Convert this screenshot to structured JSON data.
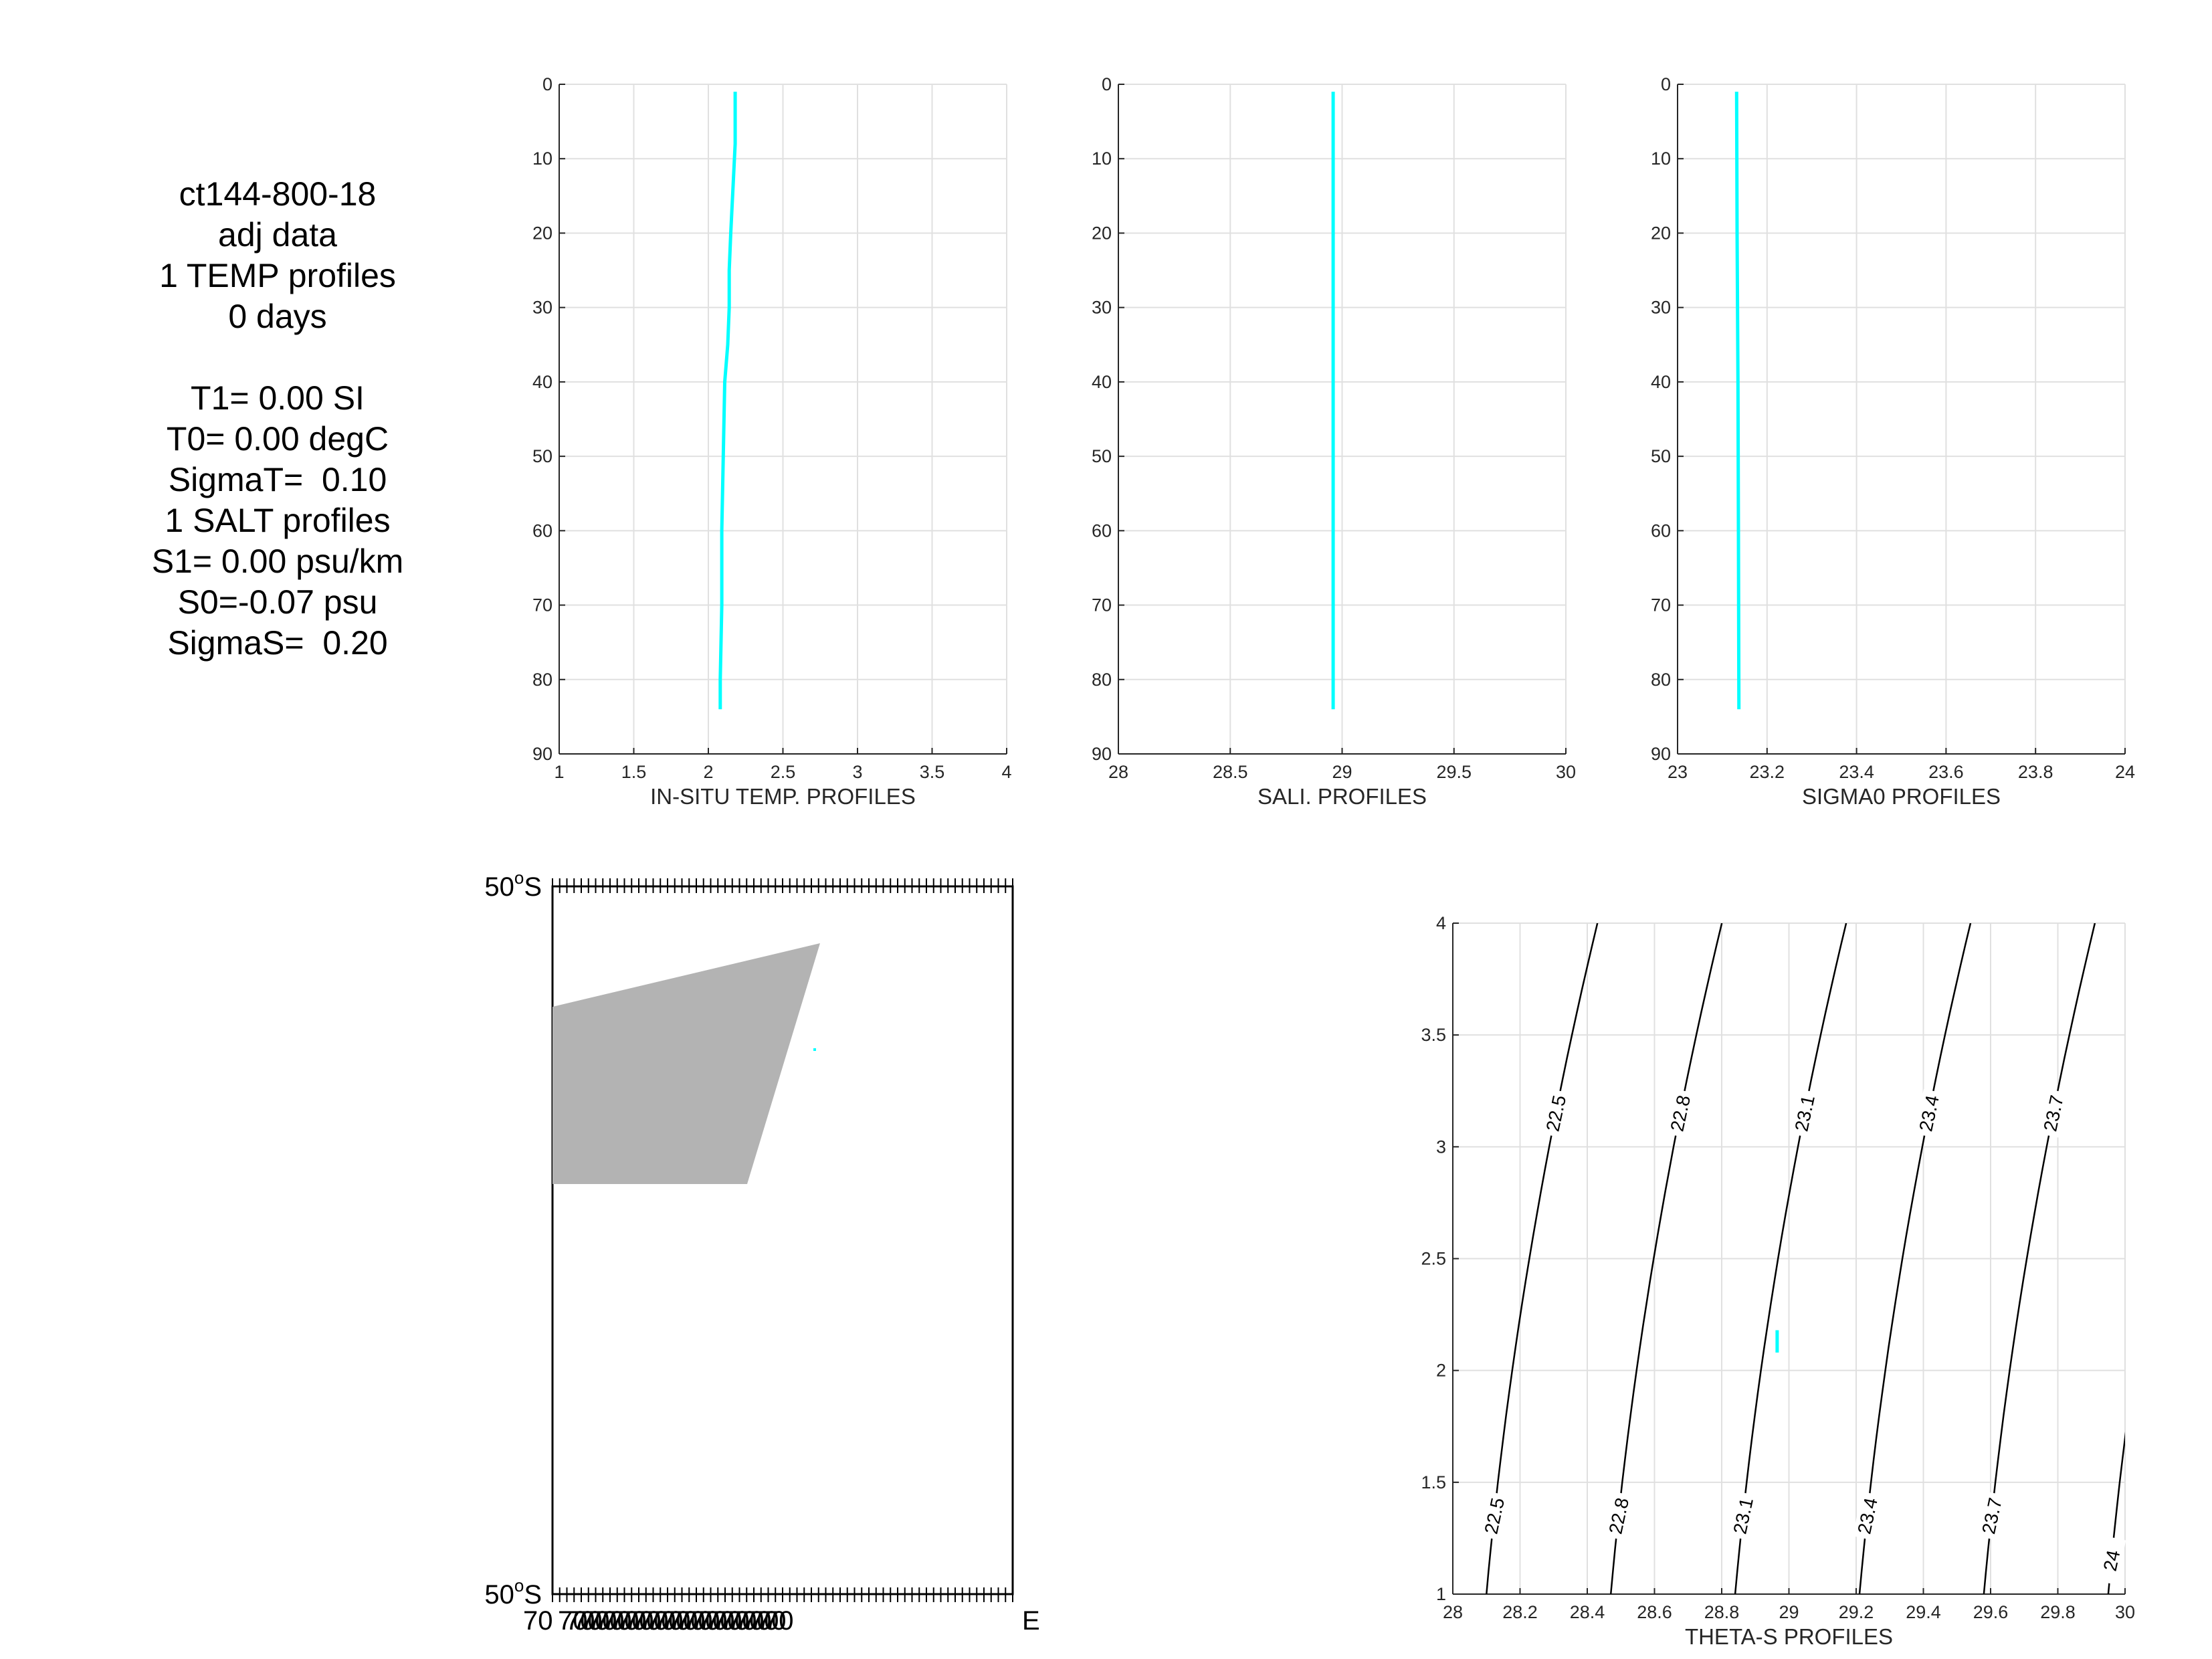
{
  "info": {
    "lines": [
      "ct144-800-18",
      "adj data",
      "1 TEMP profiles",
      "0 days",
      "",
      "T1= 0.00 SI",
      "T0= 0.00 degC",
      "SigmaT=  0.10",
      "1 SALT profiles",
      "S1= 0.00 psu/km",
      "S0=-0.07 psu",
      "SigmaS=  0.20"
    ]
  },
  "colors": {
    "profile": "#00ffff",
    "land": "#b3b3b3",
    "grid": "#e0e0e0",
    "axis": "#262626"
  },
  "chart_data": [
    {
      "type": "line",
      "xlabel": "IN-SITU TEMP. PROFILES",
      "xlim": [
        1,
        4
      ],
      "ylim": [
        0,
        90
      ],
      "y_reversed": true,
      "xticks": [
        1,
        1.5,
        2,
        2.5,
        3,
        3.5,
        4
      ],
      "xtick_labels": [
        "1",
        "1.5",
        "2",
        "2.5",
        "3",
        "3.5",
        "4"
      ],
      "yticks": [
        0,
        10,
        20,
        30,
        40,
        50,
        60,
        70,
        80,
        90
      ],
      "grid": true,
      "series": [
        {
          "x": [
            2.18,
            2.18,
            2.17,
            2.15,
            2.14,
            2.14,
            2.13,
            2.11,
            2.1,
            2.09,
            2.09,
            2.08,
            2.08
          ],
          "y": [
            1,
            8,
            12,
            20,
            25,
            30,
            35,
            40,
            50,
            60,
            70,
            80,
            84
          ]
        }
      ]
    },
    {
      "type": "line",
      "xlabel": "SALI. PROFILES",
      "xlim": [
        28,
        30
      ],
      "ylim": [
        0,
        90
      ],
      "y_reversed": true,
      "xticks": [
        28,
        28.5,
        29,
        29.5,
        30
      ],
      "xtick_labels": [
        "28",
        "28.5",
        "29",
        "29.5",
        "30"
      ],
      "yticks": [
        0,
        10,
        20,
        30,
        40,
        50,
        60,
        70,
        80,
        90
      ],
      "grid": true,
      "series": [
        {
          "x": [
            28.96,
            28.96,
            28.96,
            28.96
          ],
          "y": [
            1,
            30,
            60,
            84
          ]
        }
      ]
    },
    {
      "type": "line",
      "xlabel": "SIGMA0 PROFILES",
      "xlim": [
        23,
        24
      ],
      "ylim": [
        0,
        90
      ],
      "y_reversed": true,
      "xticks": [
        23,
        23.2,
        23.4,
        23.6,
        23.8,
        24
      ],
      "xtick_labels": [
        "23",
        "23.2",
        "23.4",
        "23.6",
        "23.8",
        "24"
      ],
      "yticks": [
        0,
        10,
        20,
        30,
        40,
        50,
        60,
        70,
        80,
        90
      ],
      "grid": true,
      "series": [
        {
          "x": [
            23.132,
            23.133,
            23.135,
            23.136,
            23.137
          ],
          "y": [
            1,
            20,
            40,
            60,
            84
          ]
        }
      ]
    },
    {
      "type": "map",
      "lat_labels": [
        "50",
        "50"
      ],
      "lat_hemisphere": "S",
      "degree_symbol": "o",
      "bottom_tick_label_fragments": [
        "70",
        "E"
      ]
    },
    {
      "type": "line",
      "xlabel": "THETA-S PROFILES",
      "xlim": [
        28,
        30
      ],
      "ylim": [
        1,
        4
      ],
      "xticks": [
        28,
        28.2,
        28.4,
        28.6,
        28.8,
        29,
        29.2,
        29.4,
        29.6,
        29.8,
        30
      ],
      "xtick_labels": [
        "28",
        "28.2",
        "28.4",
        "28.6",
        "28.8",
        "29",
        "29.2",
        "29.4",
        "29.6",
        "29.8",
        "30"
      ],
      "yticks": [
        1,
        1.5,
        2,
        2.5,
        3,
        3.5,
        4
      ],
      "ytick_labels": [
        "1",
        "1.5",
        "2",
        "2.5",
        "3",
        "3.5",
        "4"
      ],
      "grid": true,
      "contour_levels": [
        22.5,
        22.8,
        23.1,
        23.4,
        23.7,
        24
      ],
      "contour_labels": [
        "22.5",
        "22.8",
        "23.1",
        "23.4",
        "23.7",
        "24"
      ],
      "series": [
        {
          "x": [
            28.965,
            28.965
          ],
          "y": [
            2.08,
            2.18
          ]
        }
      ]
    }
  ]
}
